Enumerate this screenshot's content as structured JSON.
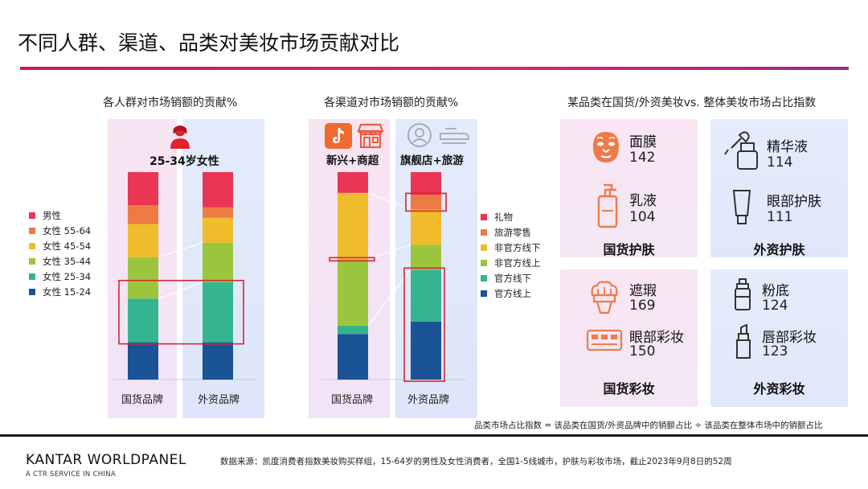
{
  "page": {
    "title": "不同人群、渠道、品类对美妆市场贡献对比",
    "footnote": "品类市场占比指数 = 该品类在国货/外资品牌中的销额占比 ÷ 该品类在整体市场中的销额占比",
    "source": "数据来源：凯度消费者指数美妆购买样组，15-64岁的男性及女性消费者，全国1-5线城市，护肤与彩妆市场，截止2023年9月8日的52周",
    "logo": "KANTAR WORLDPANEL",
    "logo_sub": "A CTR SERVICE IN CHINA"
  },
  "colors": {
    "accent": "#d6266b",
    "series": [
      "#1b5397",
      "#35b58e",
      "#9cc53e",
      "#efbc2c",
      "#ee7a44",
      "#ea3554"
    ]
  },
  "icons": [
    "person-woman-icon",
    "tiktok-icon",
    "store-icon",
    "flagship-store-icon",
    "luggage-icon",
    "face-mask-icon",
    "lotion-bottle-icon",
    "dropper-icon",
    "eye-cream-tube-icon",
    "concealer-brush-icon",
    "eyeshadow-palette-icon",
    "foundation-bottle-icon",
    "lipstick-icon"
  ],
  "chart_data": [
    {
      "type": "bar",
      "stacked": true,
      "title": "各人群对市场销额的贡献%",
      "categories": [
        "国货品牌",
        "外资品牌"
      ],
      "legend_position": "left",
      "highlight_label": "25-34岁女性",
      "series": [
        {
          "name": "女性 15-24",
          "values": [
            18,
            18
          ]
        },
        {
          "name": "女性 25-34",
          "values": [
            21,
            29
          ]
        },
        {
          "name": "女性 35-44",
          "values": [
            20,
            19
          ]
        },
        {
          "name": "女性 45-54",
          "values": [
            16,
            12
          ]
        },
        {
          "name": "女性 55-64",
          "values": [
            9,
            5
          ]
        },
        {
          "name": "男性",
          "values": [
            16,
            17
          ]
        }
      ]
    },
    {
      "type": "bar",
      "stacked": true,
      "title": "各渠道对市场销额的贡献%",
      "categories": [
        "国货品牌",
        "外资品牌"
      ],
      "legend_position": "right",
      "highlight_labels": [
        "新兴+商超",
        "旗舰店+旅游"
      ],
      "series": [
        {
          "name": "官方线上",
          "values": [
            22,
            28
          ]
        },
        {
          "name": "官方线下",
          "values": [
            4,
            25
          ]
        },
        {
          "name": "非官方线上",
          "values": [
            32,
            12
          ]
        },
        {
          "name": "非官方线下",
          "values": [
            32,
            17
          ]
        },
        {
          "name": "旅游零售",
          "values": [
            0,
            7
          ]
        },
        {
          "name": "礼物",
          "values": [
            10,
            11
          ]
        }
      ]
    },
    {
      "type": "table",
      "title": "某品类在国货/外资美妆vs. 整体美妆市场占比指数",
      "groups": [
        {
          "label": "国货护肤",
          "items": [
            {
              "name": "面膜",
              "value": "142"
            },
            {
              "name": "乳液",
              "value": "104"
            }
          ]
        },
        {
          "label": "外资护肤",
          "items": [
            {
              "name": "精华液",
              "value": "114"
            },
            {
              "name": "眼部护肤",
              "value": "111"
            }
          ]
        },
        {
          "label": "国货彩妆",
          "items": [
            {
              "name": "遮瑕",
              "value": "169"
            },
            {
              "name": "眼部彩妆",
              "value": "150"
            }
          ]
        },
        {
          "label": "外资彩妆",
          "items": [
            {
              "name": "粉底",
              "value": "124"
            },
            {
              "name": "唇部彩妆",
              "value": "123"
            }
          ]
        }
      ]
    }
  ]
}
